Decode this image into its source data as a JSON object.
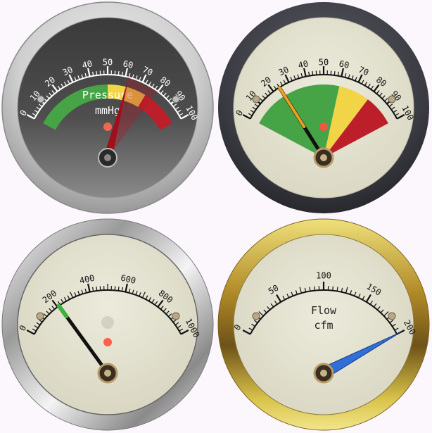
{
  "gauges": [
    {
      "title": "Pressure",
      "units": "mmHg",
      "min": 0,
      "max": 100,
      "labels": [
        "0",
        "10",
        "20",
        "30",
        "40",
        "50",
        "60",
        "70",
        "80",
        "90",
        "100"
      ],
      "value": 62,
      "bands": [
        {
          "from": 0,
          "to": 50,
          "color": "#46a346"
        },
        {
          "from": 50,
          "to": 75,
          "color": "#f2d546"
        },
        {
          "from": 75,
          "to": 100,
          "color": "#bd1f2a"
        }
      ]
    },
    {
      "title": "",
      "units": "",
      "min": 0,
      "max": 100,
      "labels": [
        "0",
        "10",
        "20",
        "30",
        "40",
        "50",
        "60",
        "70",
        "80",
        "90",
        "100"
      ],
      "value": 24,
      "bands": [
        {
          "from": 0,
          "to": 60,
          "color": "#46a346"
        },
        {
          "from": 60,
          "to": 80,
          "color": "#f2d546"
        },
        {
          "from": 80,
          "to": 100,
          "color": "#bd1f2a"
        }
      ]
    },
    {
      "title": "",
      "units": "",
      "min": 0,
      "max": 1000,
      "labels": [
        "0",
        "200",
        "400",
        "600",
        "800",
        "1000"
      ],
      "value": 210,
      "bands": []
    },
    {
      "title": "Flow",
      "units": "cfm",
      "min": 0,
      "max": 200,
      "labels": [
        "0",
        "50",
        "100",
        "150",
        "200"
      ],
      "value": 200,
      "bands": []
    }
  ],
  "colors": {
    "page_background": "#fcf6fd",
    "silver_bezel": "#c9c9c9",
    "dark_bezel": "#3b3b42",
    "gold_bezel": "#c8a92e",
    "cream_face": "#e4e2d0",
    "dark_face": "#4a4a4a",
    "needle_black": "#111111",
    "needle_red": "#a0101c",
    "needle_blue": "#2f6fd6",
    "needle_tip_orange": "#f0a020",
    "needle_tip_green": "#3fae3f",
    "indicator_led": "#ff4030"
  }
}
